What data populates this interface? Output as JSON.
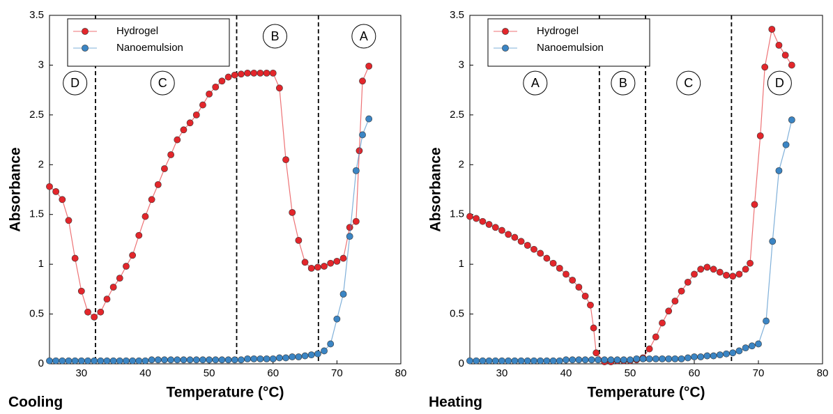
{
  "chart_data": [
    {
      "type": "line",
      "caption": "Cooling",
      "xlabel": "Temperature (°C)",
      "ylabel": "Absorbance",
      "xlim": [
        25,
        80
      ],
      "xticks": [
        30,
        40,
        50,
        60,
        70,
        80
      ],
      "ylim": [
        0,
        3.5
      ],
      "yticks": [
        0,
        0.5,
        1,
        1.5,
        2,
        2.5,
        3,
        3.5
      ],
      "legend": "upper left",
      "series": [
        {
          "name": "Hydrogel",
          "color": "#e3262b",
          "x": [
            25,
            26,
            27,
            28,
            29,
            30,
            31,
            32,
            33,
            34,
            35,
            36,
            37,
            38,
            39,
            40,
            41,
            42,
            43,
            44,
            45,
            46,
            47,
            48,
            49,
            50,
            51,
            52,
            53,
            54,
            55,
            56,
            57,
            58,
            59,
            60,
            61,
            62,
            63,
            64,
            65,
            66,
            67,
            68,
            69,
            70,
            71,
            72,
            73,
            73.5,
            74,
            75
          ],
          "values": [
            1.78,
            1.73,
            1.65,
            1.44,
            1.06,
            0.73,
            0.52,
            0.47,
            0.52,
            0.65,
            0.77,
            0.86,
            0.98,
            1.09,
            1.29,
            1.48,
            1.65,
            1.8,
            1.96,
            2.1,
            2.25,
            2.35,
            2.42,
            2.5,
            2.6,
            2.71,
            2.78,
            2.84,
            2.88,
            2.9,
            2.91,
            2.92,
            2.92,
            2.92,
            2.92,
            2.92,
            2.77,
            2.05,
            1.52,
            1.24,
            1.02,
            0.96,
            0.97,
            0.98,
            1.01,
            1.03,
            1.06,
            1.37,
            1.43,
            2.14,
            2.84,
            2.99
          ]
        },
        {
          "name": "Nanoemulsion",
          "color": "#3b85c4",
          "x": [
            25,
            26,
            27,
            28,
            29,
            30,
            31,
            32,
            33,
            34,
            35,
            36,
            37,
            38,
            39,
            40,
            41,
            42,
            43,
            44,
            45,
            46,
            47,
            48,
            49,
            50,
            51,
            52,
            53,
            54,
            55,
            56,
            57,
            58,
            59,
            60,
            61,
            62,
            63,
            64,
            65,
            66,
            67,
            68,
            69,
            70,
            71,
            72,
            73,
            74,
            75
          ],
          "values": [
            0.03,
            0.03,
            0.03,
            0.03,
            0.03,
            0.03,
            0.03,
            0.03,
            0.03,
            0.03,
            0.03,
            0.03,
            0.03,
            0.03,
            0.03,
            0.03,
            0.04,
            0.04,
            0.04,
            0.04,
            0.04,
            0.04,
            0.04,
            0.04,
            0.04,
            0.04,
            0.04,
            0.04,
            0.04,
            0.04,
            0.04,
            0.05,
            0.05,
            0.05,
            0.05,
            0.05,
            0.06,
            0.06,
            0.07,
            0.07,
            0.08,
            0.09,
            0.1,
            0.13,
            0.2,
            0.45,
            0.7,
            1.28,
            1.94,
            2.3,
            2.46
          ]
        }
      ],
      "dividers": [
        32.2,
        54.3,
        67.1
      ],
      "regions": [
        {
          "label": "D",
          "x": 29,
          "y": 2.82
        },
        {
          "label": "C",
          "x": 42.7,
          "y": 2.82
        },
        {
          "label": "B",
          "x": 60.3,
          "y": 3.29
        },
        {
          "label": "A",
          "x": 74.2,
          "y": 3.29
        }
      ]
    },
    {
      "type": "line",
      "caption": "Heating",
      "xlabel": "Temperature (°C)",
      "ylabel": "Absorbance",
      "xlim": [
        25,
        80
      ],
      "xticks": [
        30,
        40,
        50,
        60,
        70,
        80
      ],
      "ylim": [
        0,
        3.5
      ],
      "yticks": [
        0,
        0.5,
        1,
        1.5,
        2,
        2.5,
        3,
        3.5
      ],
      "legend": "upper left",
      "series": [
        {
          "name": "Hydrogel",
          "color": "#e3262b",
          "x": [
            25,
            26,
            27,
            28,
            29,
            30,
            31,
            32,
            33,
            34,
            35,
            36,
            37,
            38,
            39,
            40,
            41,
            42,
            43,
            43.8,
            44.3,
            44.7,
            46,
            47,
            48,
            49,
            50,
            51,
            52,
            53,
            54,
            55,
            56,
            57,
            58,
            59,
            60,
            61,
            62,
            63,
            64,
            65,
            66,
            67,
            68,
            68.7,
            69.4,
            70.3,
            71,
            72.1,
            73.2,
            74.2,
            75.2
          ],
          "values": [
            1.48,
            1.46,
            1.43,
            1.4,
            1.37,
            1.34,
            1.3,
            1.27,
            1.23,
            1.19,
            1.15,
            1.11,
            1.06,
            1.01,
            0.96,
            0.9,
            0.84,
            0.77,
            0.68,
            0.59,
            0.36,
            0.11,
            0.02,
            0.02,
            0.03,
            0.03,
            0.03,
            0.04,
            0.06,
            0.15,
            0.27,
            0.41,
            0.53,
            0.63,
            0.73,
            0.82,
            0.9,
            0.95,
            0.97,
            0.95,
            0.92,
            0.89,
            0.88,
            0.9,
            0.95,
            1.01,
            1.6,
            2.29,
            2.98,
            3.36,
            3.2,
            3.1,
            3.0
          ]
        },
        {
          "name": "Nanoemulsion",
          "color": "#3b85c4",
          "x": [
            25,
            26,
            27,
            28,
            29,
            30,
            31,
            32,
            33,
            34,
            35,
            36,
            37,
            38,
            39,
            40,
            41,
            42,
            43,
            44,
            45,
            46,
            47,
            48,
            49,
            50,
            51,
            52,
            53,
            54,
            55,
            56,
            57,
            58,
            59,
            60,
            61,
            62,
            63,
            64,
            65,
            66,
            67,
            68,
            69,
            70,
            71.2,
            72.2,
            73.2,
            74.3,
            75.2
          ],
          "values": [
            0.03,
            0.03,
            0.03,
            0.03,
            0.03,
            0.03,
            0.03,
            0.03,
            0.03,
            0.03,
            0.03,
            0.03,
            0.03,
            0.03,
            0.03,
            0.04,
            0.04,
            0.04,
            0.04,
            0.04,
            0.04,
            0.04,
            0.04,
            0.04,
            0.04,
            0.04,
            0.05,
            0.05,
            0.05,
            0.05,
            0.05,
            0.05,
            0.05,
            0.05,
            0.06,
            0.07,
            0.07,
            0.08,
            0.08,
            0.09,
            0.1,
            0.11,
            0.13,
            0.16,
            0.18,
            0.2,
            0.43,
            1.23,
            1.94,
            2.2,
            2.45
          ]
        }
      ],
      "dividers": [
        45.2,
        52.4,
        65.8
      ],
      "regions": [
        {
          "label": "A",
          "x": 35.2,
          "y": 2.82
        },
        {
          "label": "B",
          "x": 48.9,
          "y": 2.82
        },
        {
          "label": "C",
          "x": 59.1,
          "y": 2.82
        },
        {
          "label": "D",
          "x": 73.3,
          "y": 2.82
        }
      ]
    }
  ]
}
